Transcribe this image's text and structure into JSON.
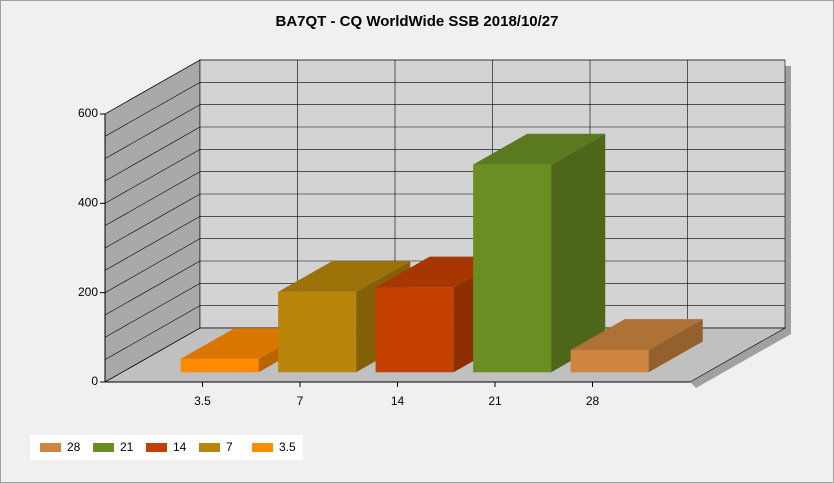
{
  "chart_data": {
    "type": "bar3d",
    "title": "BA7QT - CQ WorldWide SSB 2018/10/27",
    "categories": [
      "3.5",
      "7",
      "14",
      "21",
      "28"
    ],
    "values": [
      30,
      180,
      190,
      465,
      50
    ],
    "colors": [
      "#ff8c00",
      "#b8860b",
      "#c44000",
      "#6b8e23",
      "#cd853f"
    ],
    "ylim": [
      0,
      600
    ],
    "yticks": [
      0,
      200,
      400,
      600
    ],
    "grid_values": [
      0,
      50,
      100,
      150,
      200,
      250,
      300,
      350,
      400,
      450,
      500,
      550,
      600
    ],
    "grid": true,
    "legend": "bottom-left"
  }
}
